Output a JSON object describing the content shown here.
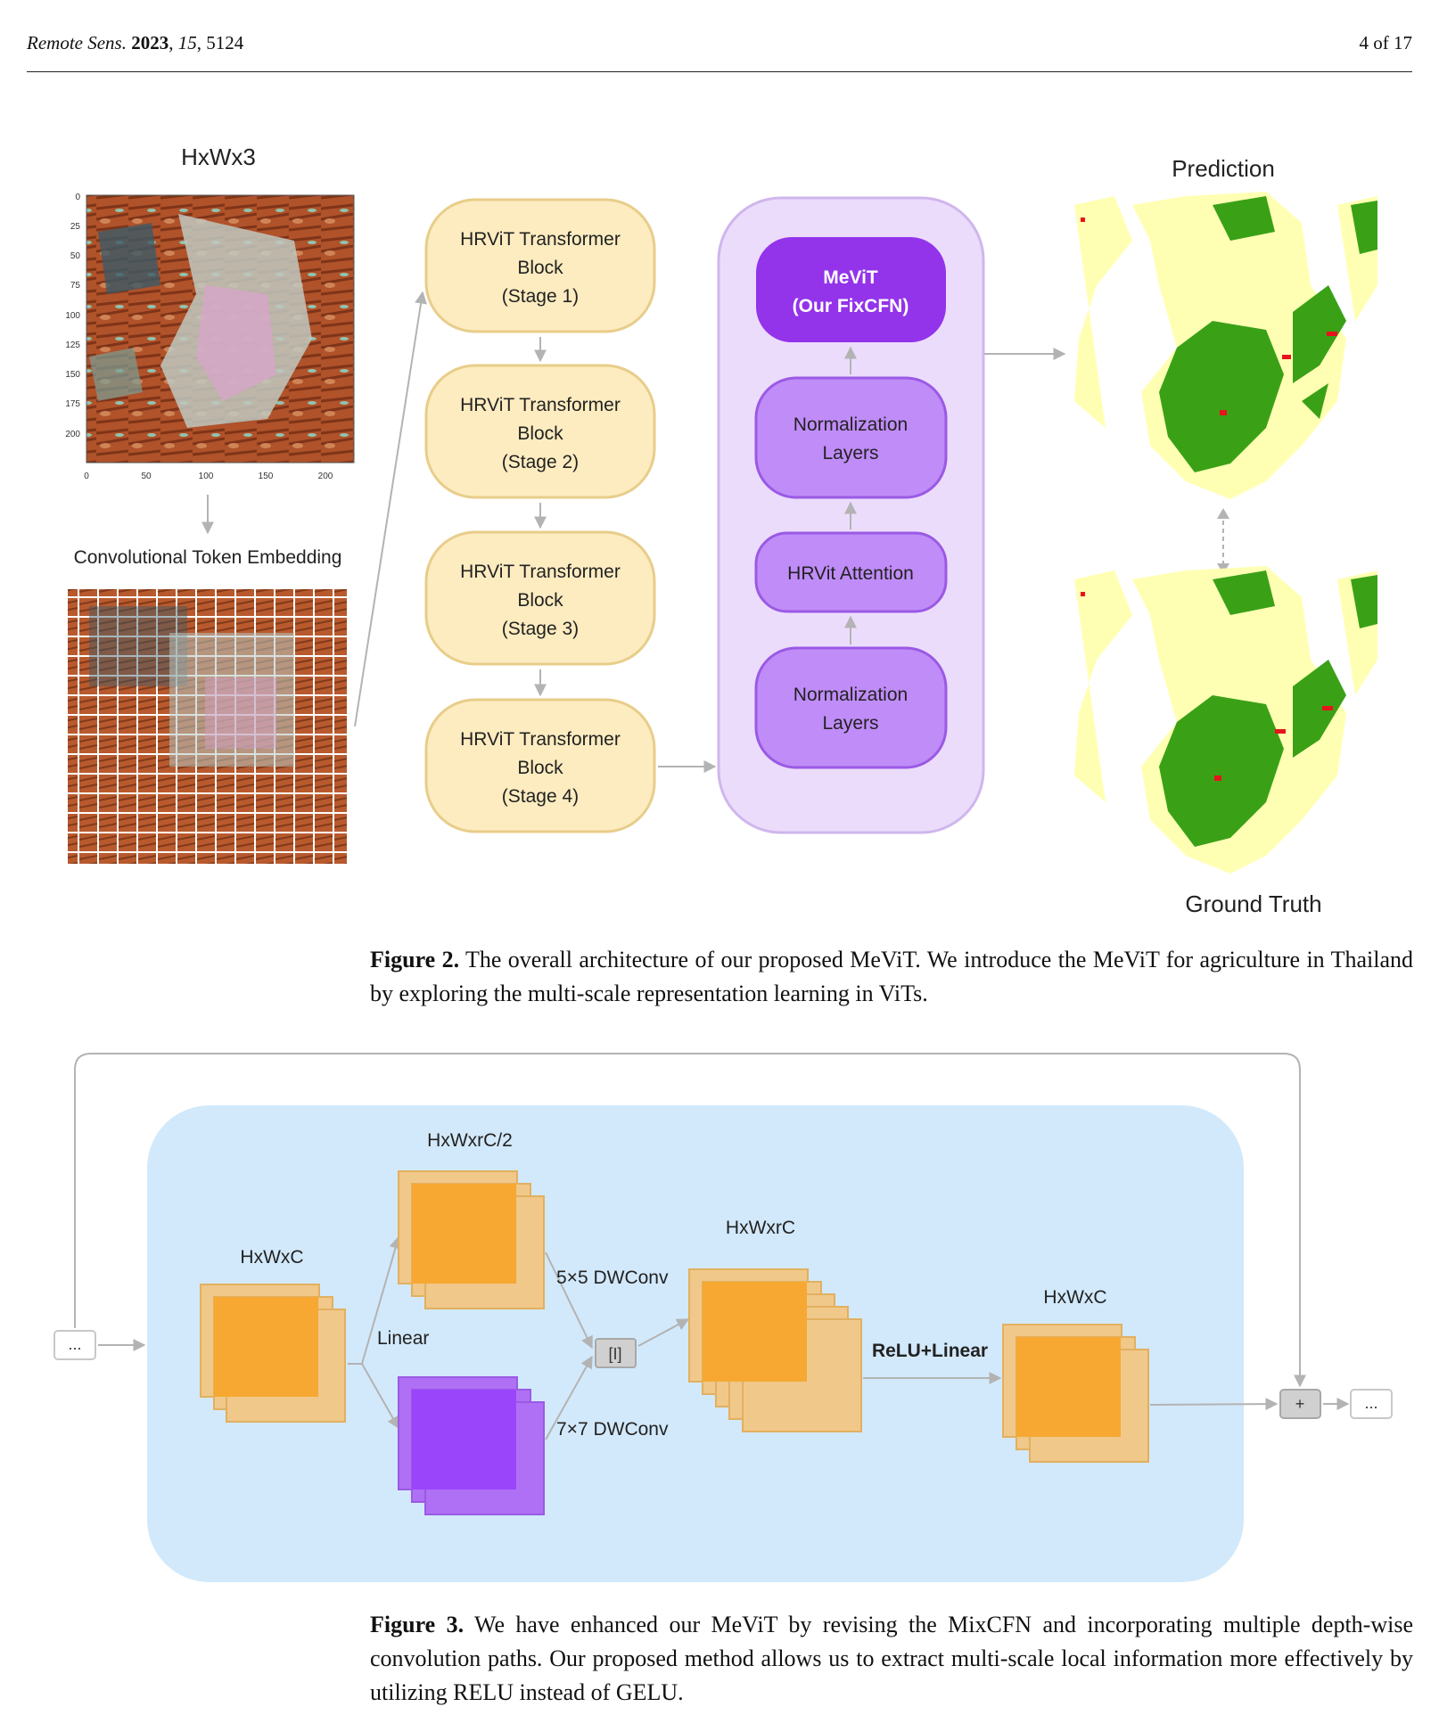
{
  "header": {
    "journal": "Remote Sens.",
    "year": "2023",
    "volume": "15",
    "article": "5124",
    "page": "4 of 17"
  },
  "figure2": {
    "input_title": "HxWx3",
    "y_ticks": [
      "0",
      "25",
      "50",
      "75",
      "100",
      "125",
      "150",
      "175",
      "200"
    ],
    "x_ticks": [
      "0",
      "50",
      "100",
      "150",
      "200"
    ],
    "embedding_label": "Convolutional Token Embedding",
    "stages": [
      {
        "line1": "HRViT Transformer",
        "line2": "Block",
        "line3": "(Stage 1)"
      },
      {
        "line1": "HRViT Transformer",
        "line2": "Block",
        "line3": "(Stage 2)"
      },
      {
        "line1": "HRViT Transformer",
        "line2": "Block",
        "line3": "(Stage 3)"
      },
      {
        "line1": "HRViT Transformer",
        "line2": "Block",
        "line3": "(Stage 4)"
      }
    ],
    "mevit": {
      "line1": "MeViT",
      "line2": "(Our FixCFN)"
    },
    "norm_top": {
      "line1": "Normalization",
      "line2": "Layers"
    },
    "attention": "HRVit Attention",
    "norm_bottom": {
      "line1": "Normalization",
      "line2": "Layers"
    },
    "prediction_label": "Prediction",
    "ground_truth_label": "Ground Truth",
    "colors": {
      "stage_fill": "#fdecc0",
      "stage_stroke": "#e8cd8a",
      "panel_fill": "#ecdcfc",
      "block_fill": "#c08cf8",
      "mevit_fill": "#9333ea",
      "crop_green": "#3aa117",
      "crop_yellow": "#ffffb3",
      "crop_red": "#e8131c"
    }
  },
  "caption2": {
    "label": "Figure 2.",
    "text": "The overall architecture of our proposed MeViT. We introduce the MeViT for agriculture in Thailand by exploring the multi-scale representation learning in ViTs."
  },
  "figure3": {
    "input_dots": "...",
    "dim_input": "HxWxC",
    "linear_label": "Linear",
    "dim_half": "HxWxrC/2",
    "conv5": "5×5 DWConv",
    "conv7": "7×7 DWConv",
    "concat_label": "[I]",
    "dim_expanded": "HxWxrC",
    "relu_label": "ReLU+Linear",
    "dim_output": "HxWxC",
    "plus_label": "+",
    "output_dots": "...",
    "colors": {
      "panel": "#d2e9fb",
      "orange": "#f6a832",
      "orange_light": "#f0c88a",
      "purple": "#9b45fb"
    }
  },
  "caption3": {
    "label": "Figure 3.",
    "text": "We have enhanced our MeViT by revising the MixCFN and incorporating multiple depth-wise convolution paths. Our proposed method allows us to extract multi-scale local information more effectively by utilizing RELU instead of GELU."
  }
}
